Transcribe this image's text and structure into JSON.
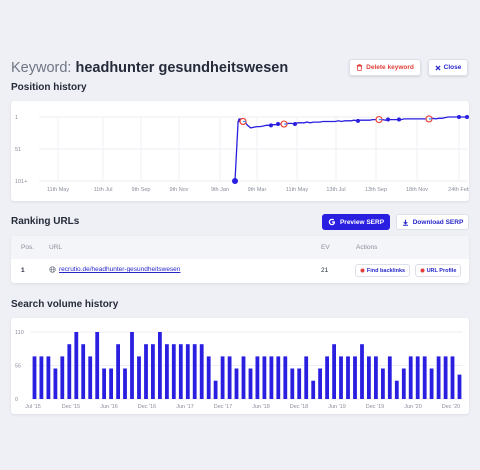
{
  "header": {
    "keyword_prefix": "Keyword:",
    "keyword_value": "headhunter gesundheitswesen",
    "delete_label": "Delete keyword",
    "close_label": "Close",
    "delete_color": "#e0413a",
    "accent_color": "#2a1ee0"
  },
  "position_history": {
    "title": "Position history",
    "chart_data": {
      "type": "line",
      "title": "Position history",
      "y_ticks": [
        "1",
        "51",
        "101+"
      ],
      "ylim": [
        101,
        1
      ],
      "x_ticks": [
        "11th May",
        "11th Jul",
        "9th Sep",
        "9th Nov",
        "9th Jan",
        "9th Mar",
        "11th May",
        "13th Jul",
        "13th Sep",
        "18th Nov",
        "24th Feb"
      ],
      "series": [
        {
          "values": [
            101,
            101,
            101,
            101,
            101,
            101,
            101,
            101,
            101,
            101,
            101,
            101,
            101,
            101,
            101,
            101,
            101,
            101,
            101,
            101,
            101,
            101,
            101,
            101,
            101,
            101,
            101,
            101,
            101,
            101,
            101,
            101,
            101,
            101,
            101,
            101,
            101,
            101,
            101,
            101,
            101,
            101,
            101,
            101,
            101,
            101,
            101,
            101,
            101,
            101,
            101,
            101,
            101,
            101,
            101,
            101,
            101,
            101,
            101,
            101,
            8,
            6,
            8,
            14,
            18,
            17,
            16,
            16,
            15,
            14,
            14,
            13,
            13,
            12,
            12,
            12,
            11,
            11,
            12,
            10,
            10,
            10,
            9,
            10,
            9,
            9,
            9,
            8,
            8,
            8,
            8,
            8,
            7,
            8,
            7,
            7,
            7,
            6,
            7,
            6,
            6,
            6,
            6,
            5,
            5,
            5,
            5,
            6,
            5,
            5,
            5,
            5,
            5,
            4,
            4,
            4,
            4,
            4,
            4,
            4,
            4,
            4,
            3,
            4,
            3,
            3,
            2,
            1,
            1,
            1,
            1,
            1,
            1,
            1
          ],
          "color": "#2a1ee0"
        }
      ],
      "markers": "google-icons",
      "grid": true
    }
  },
  "ranking_urls": {
    "title": "Ranking URLs",
    "preview_serp_label": "Preview SERP",
    "download_serp_label": "Download SERP",
    "columns": [
      "Pos.",
      "URL",
      "EV",
      "Actions"
    ],
    "rows": [
      {
        "pos": "1",
        "url": "recrutio.de/headhunter-gesundheitswesen",
        "ev": "21",
        "action1": "Find backlinks",
        "action2": "URL Profile"
      }
    ]
  },
  "search_volume": {
    "title": "Search volume history",
    "chart_data": {
      "type": "bar",
      "title": "Search volume history",
      "y_ticks": [
        "110",
        "55",
        "0"
      ],
      "ylim": [
        0,
        110
      ],
      "x_ticks": [
        "Jul '15",
        "Dec '15",
        "Jun '16",
        "Dec '16",
        "Jun '17",
        "Dec '17",
        "Jun '18",
        "Dec '18",
        "Jun '19",
        "Dec '19",
        "Jun '20",
        "Dec '20"
      ],
      "values": [
        70,
        70,
        70,
        50,
        70,
        90,
        110,
        90,
        70,
        110,
        50,
        50,
        90,
        50,
        110,
        70,
        90,
        90,
        110,
        90,
        90,
        90,
        90,
        90,
        90,
        70,
        30,
        70,
        70,
        50,
        70,
        50,
        70,
        70,
        70,
        70,
        70,
        50,
        50,
        70,
        30,
        50,
        70,
        90,
        70,
        70,
        70,
        90,
        70,
        70,
        50,
        70,
        30,
        50,
        70,
        70,
        70,
        50,
        70,
        70,
        70,
        40
      ],
      "color": "#2a1ee0",
      "grid": true
    }
  }
}
